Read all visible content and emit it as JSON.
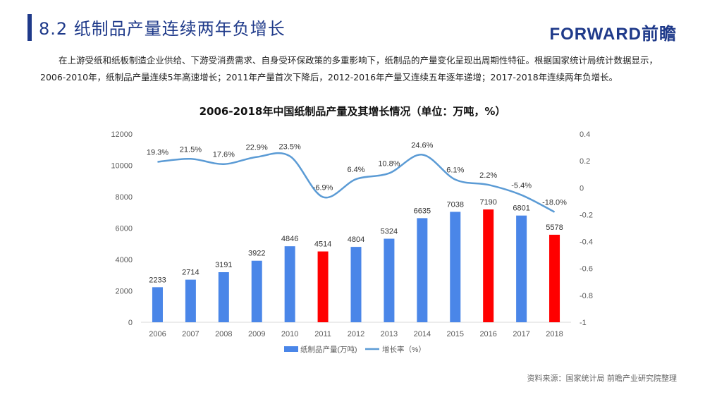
{
  "header": {
    "section_title": "8.2 纸制品产量连续两年负增长",
    "logo_text": "FORWARD前瞻"
  },
  "intro": {
    "line1": "在上游受纸和纸板制造企业供给、下游受消费需求、自身受环保政策的多重影响下，纸制品的产量变化呈现出周期性特征。根据国家统计局统计数据显示，",
    "line2": "2006-2010年，纸制品产量连续5年高速增长；2011年产量首次下降后，2012-2016年产量又连续五年逐年递增；2017-2018年连续两年负增长。"
  },
  "chart_data": {
    "type": "bar",
    "title": "2006-2018年中国纸制品产量及其增长情况（单位：万吨，%）",
    "categories": [
      "2006",
      "2007",
      "2008",
      "2009",
      "2010",
      "2011",
      "2012",
      "2013",
      "2014",
      "2015",
      "2016",
      "2017",
      "2018"
    ],
    "series": [
      {
        "name": "纸制品产量(万吨)",
        "type": "bar",
        "axis": "left",
        "values": [
          2233,
          2714,
          3191,
          3922,
          4846,
          4514,
          4804,
          5324,
          6635,
          7038,
          7190,
          6801,
          5578
        ],
        "labels": [
          "2233",
          "2714",
          "3191",
          "3922",
          "4846",
          "4514",
          "4804",
          "5324",
          "6635",
          "7038",
          "7190",
          "6801",
          "5578"
        ]
      },
      {
        "name": "增长率（%）",
        "type": "line",
        "axis": "right",
        "values": [
          0.193,
          0.215,
          0.176,
          0.229,
          0.235,
          -0.069,
          0.064,
          0.108,
          0.246,
          0.061,
          0.022,
          -0.054,
          -0.18
        ],
        "labels": [
          "19.3%",
          "21.5%",
          "17.6%",
          "22.9%",
          "23.5%",
          "-6.9%",
          "6.4%",
          "10.8%",
          "24.6%",
          "6.1%",
          "2.2%",
          "-5.4%",
          "-18.0%"
        ]
      }
    ],
    "highlight_categories": [
      "2011",
      "2016",
      "2018"
    ],
    "colors": {
      "bar": "#4a86e8",
      "bar_highlight": "#ff0000",
      "line": "#5b9bd5"
    },
    "left_axis": {
      "ylim": [
        0,
        12000
      ],
      "ticks": [
        "0",
        "2000",
        "4000",
        "6000",
        "8000",
        "10000",
        "12000"
      ]
    },
    "right_axis": {
      "ylim": [
        -1,
        0.4
      ],
      "ticks": [
        "-1",
        "-0.8",
        "-0.6",
        "-0.4",
        "-0.2",
        "0",
        "0.2",
        "0.4"
      ]
    },
    "legend_position": "bottom"
  },
  "footer": {
    "source": "资料来源：国家统计局 前瞻产业研究院整理"
  }
}
